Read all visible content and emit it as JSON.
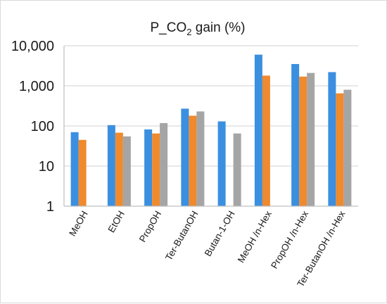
{
  "chart_data": {
    "type": "bar",
    "title_main": "P_CO",
    "title_sub": "2",
    "title_suffix": " gain (%)",
    "scale": "log",
    "ylim": [
      1,
      10000
    ],
    "yticks": [
      1,
      10,
      100,
      1000,
      10000
    ],
    "ytick_labels": [
      "1",
      "10",
      "100",
      "1,000",
      "10,000"
    ],
    "grid": true,
    "legend": "none",
    "categories": [
      "MeOH",
      "EtOH",
      "PropOH",
      "Ter-ButanOH",
      "Butan-1-OH",
      "MeOH /n-Hex",
      "PropOH /n-Hex",
      "Ter-ButanOH /n-Hex"
    ],
    "series": [
      {
        "color": "#3b8fe0",
        "values": [
          70,
          105,
          82,
          270,
          130,
          6000,
          3500,
          2200
        ]
      },
      {
        "color": "#ef8a2e",
        "values": [
          45,
          68,
          65,
          180,
          null,
          1800,
          1700,
          650
        ]
      },
      {
        "color": "#a5a5a5",
        "values": [
          null,
          55,
          118,
          230,
          65,
          null,
          2100,
          800
        ]
      }
    ]
  }
}
